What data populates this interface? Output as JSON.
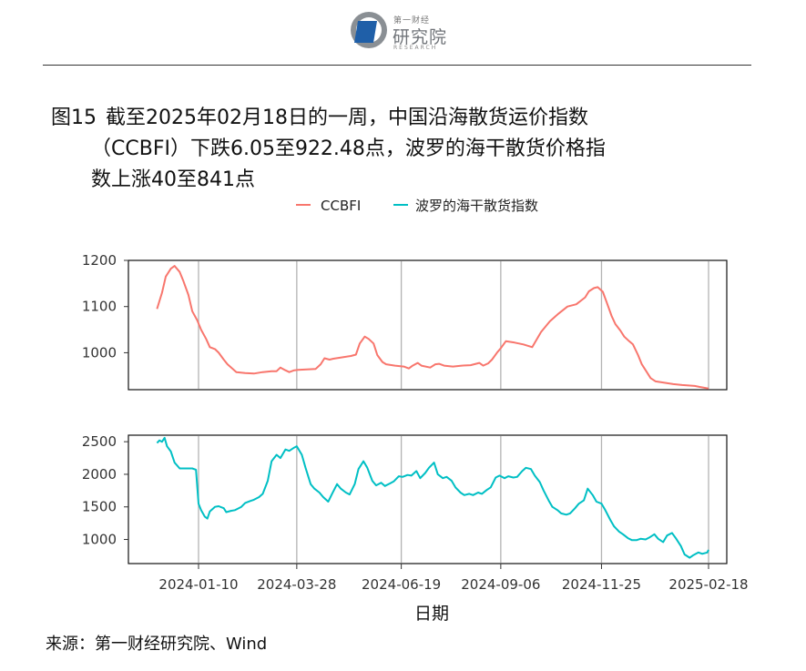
{
  "header": {
    "brand_small": "第一财经",
    "brand": "研究院",
    "brand_sub": "RESEARCH"
  },
  "title": {
    "fig": "图15",
    "line1": "截至2025年02月18日的一周，中国沿海散货运价指数",
    "line2": "（CCBFI）下跌6.05至922.48点，波罗的海干散货价格指",
    "line3": "数上涨40至841点"
  },
  "source": "来源：第一财经研究院、Wind",
  "colors": {
    "ccbfi": "#F8766D",
    "bdi": "#00BFC4"
  },
  "chart_data": {
    "type": "line",
    "xlabel": "日期",
    "x_ticks": [
      "2024-01-10",
      "2024-03-28",
      "2024-06-19",
      "2024-09-06",
      "2024-11-25",
      "2025-02-18"
    ],
    "legend": [
      "CCBFI",
      "波罗的海干散货指数"
    ],
    "legend_placement": "top",
    "panels": [
      {
        "series": "CCBFI",
        "ylim": [
          920,
          1200
        ],
        "y_ticks": [
          1000,
          1100,
          1200
        ],
        "points": [
          [
            "2023-12-08",
            1095
          ],
          [
            "2023-12-12",
            1130
          ],
          [
            "2023-12-15",
            1165
          ],
          [
            "2023-12-19",
            1182
          ],
          [
            "2023-12-22",
            1188
          ],
          [
            "2023-12-26",
            1175
          ],
          [
            "2023-12-29",
            1155
          ],
          [
            "2024-01-02",
            1125
          ],
          [
            "2024-01-05",
            1090
          ],
          [
            "2024-01-09",
            1070
          ],
          [
            "2024-01-12",
            1050
          ],
          [
            "2024-01-16",
            1030
          ],
          [
            "2024-01-19",
            1012
          ],
          [
            "2024-01-23",
            1008
          ],
          [
            "2024-01-26",
            1000
          ],
          [
            "2024-01-30",
            985
          ],
          [
            "2024-02-02",
            975
          ],
          [
            "2024-02-09",
            958
          ],
          [
            "2024-02-16",
            956
          ],
          [
            "2024-02-23",
            955
          ],
          [
            "2024-03-01",
            958
          ],
          [
            "2024-03-08",
            960
          ],
          [
            "2024-03-12",
            960
          ],
          [
            "2024-03-15",
            968
          ],
          [
            "2024-03-19",
            962
          ],
          [
            "2024-03-22",
            958
          ],
          [
            "2024-03-26",
            962
          ],
          [
            "2024-03-29",
            963
          ],
          [
            "2024-04-05",
            964
          ],
          [
            "2024-04-12",
            965
          ],
          [
            "2024-04-16",
            975
          ],
          [
            "2024-04-19",
            988
          ],
          [
            "2024-04-23",
            985
          ],
          [
            "2024-04-26",
            987
          ],
          [
            "2024-05-03",
            990
          ],
          [
            "2024-05-10",
            993
          ],
          [
            "2024-05-14",
            996
          ],
          [
            "2024-05-17",
            1020
          ],
          [
            "2024-05-21",
            1035
          ],
          [
            "2024-05-24",
            1030
          ],
          [
            "2024-05-28",
            1020
          ],
          [
            "2024-05-31",
            995
          ],
          [
            "2024-06-04",
            980
          ],
          [
            "2024-06-07",
            975
          ],
          [
            "2024-06-14",
            972
          ],
          [
            "2024-06-21",
            970
          ],
          [
            "2024-06-25",
            966
          ],
          [
            "2024-06-28",
            972
          ],
          [
            "2024-07-02",
            978
          ],
          [
            "2024-07-05",
            972
          ],
          [
            "2024-07-12",
            968
          ],
          [
            "2024-07-16",
            975
          ],
          [
            "2024-07-19",
            976
          ],
          [
            "2024-07-23",
            972
          ],
          [
            "2024-07-30",
            970
          ],
          [
            "2024-08-06",
            972
          ],
          [
            "2024-08-13",
            973
          ],
          [
            "2024-08-20",
            978
          ],
          [
            "2024-08-23",
            972
          ],
          [
            "2024-08-27",
            977
          ],
          [
            "2024-08-30",
            985
          ],
          [
            "2024-09-03",
            1000
          ],
          [
            "2024-09-06",
            1010
          ],
          [
            "2024-09-10",
            1025
          ],
          [
            "2024-09-17",
            1022
          ],
          [
            "2024-09-24",
            1018
          ],
          [
            "2024-10-01",
            1012
          ],
          [
            "2024-10-08",
            1045
          ],
          [
            "2024-10-15",
            1068
          ],
          [
            "2024-10-22",
            1085
          ],
          [
            "2024-10-29",
            1100
          ],
          [
            "2024-11-05",
            1105
          ],
          [
            "2024-11-12",
            1120
          ],
          [
            "2024-11-15",
            1133
          ],
          [
            "2024-11-19",
            1140
          ],
          [
            "2024-11-22",
            1142
          ],
          [
            "2024-11-26",
            1132
          ],
          [
            "2024-11-29",
            1110
          ],
          [
            "2024-12-03",
            1080
          ],
          [
            "2024-12-06",
            1062
          ],
          [
            "2024-12-10",
            1048
          ],
          [
            "2024-12-13",
            1035
          ],
          [
            "2024-12-17",
            1025
          ],
          [
            "2024-12-20",
            1018
          ],
          [
            "2024-12-24",
            995
          ],
          [
            "2024-12-27",
            975
          ],
          [
            "2024-12-31",
            958
          ],
          [
            "2025-01-03",
            945
          ],
          [
            "2025-01-07",
            938
          ],
          [
            "2025-01-14",
            935
          ],
          [
            "2025-01-21",
            932
          ],
          [
            "2025-01-28",
            930
          ],
          [
            "2025-02-07",
            928
          ],
          [
            "2025-02-11",
            926
          ],
          [
            "2025-02-18",
            922.48
          ]
        ]
      },
      {
        "series": "波罗的海干散货指数",
        "ylim": [
          630,
          2600
        ],
        "y_ticks": [
          1000,
          1500,
          2000,
          2500
        ],
        "points": [
          [
            "2023-12-08",
            2480
          ],
          [
            "2023-12-10",
            2520
          ],
          [
            "2023-12-12",
            2500
          ],
          [
            "2023-12-14",
            2560
          ],
          [
            "2023-12-16",
            2430
          ],
          [
            "2023-12-19",
            2350
          ],
          [
            "2023-12-22",
            2180
          ],
          [
            "2023-12-26",
            2090
          ],
          [
            "2023-12-29",
            2090
          ],
          [
            "2024-01-02",
            2090
          ],
          [
            "2024-01-05",
            2090
          ],
          [
            "2024-01-08",
            2070
          ],
          [
            "2024-01-10",
            1550
          ],
          [
            "2024-01-12",
            1450
          ],
          [
            "2024-01-15",
            1350
          ],
          [
            "2024-01-17",
            1320
          ],
          [
            "2024-01-19",
            1430
          ],
          [
            "2024-01-23",
            1500
          ],
          [
            "2024-01-26",
            1510
          ],
          [
            "2024-01-30",
            1480
          ],
          [
            "2024-02-01",
            1420
          ],
          [
            "2024-02-05",
            1440
          ],
          [
            "2024-02-08",
            1450
          ],
          [
            "2024-02-13",
            1500
          ],
          [
            "2024-02-16",
            1560
          ],
          [
            "2024-02-20",
            1590
          ],
          [
            "2024-02-23",
            1610
          ],
          [
            "2024-02-27",
            1650
          ],
          [
            "2024-03-01",
            1700
          ],
          [
            "2024-03-05",
            1900
          ],
          [
            "2024-03-08",
            2200
          ],
          [
            "2024-03-12",
            2300
          ],
          [
            "2024-03-15",
            2250
          ],
          [
            "2024-03-19",
            2380
          ],
          [
            "2024-03-22",
            2360
          ],
          [
            "2024-03-26",
            2410
          ],
          [
            "2024-03-28",
            2430
          ],
          [
            "2024-04-01",
            2300
          ],
          [
            "2024-04-04",
            2100
          ],
          [
            "2024-04-08",
            1850
          ],
          [
            "2024-04-11",
            1780
          ],
          [
            "2024-04-15",
            1720
          ],
          [
            "2024-04-18",
            1650
          ],
          [
            "2024-04-22",
            1580
          ],
          [
            "2024-04-25",
            1700
          ],
          [
            "2024-04-29",
            1850
          ],
          [
            "2024-05-02",
            1780
          ],
          [
            "2024-05-06",
            1720
          ],
          [
            "2024-05-09",
            1690
          ],
          [
            "2024-05-13",
            1850
          ],
          [
            "2024-05-16",
            2080
          ],
          [
            "2024-05-20",
            2200
          ],
          [
            "2024-05-23",
            2100
          ],
          [
            "2024-05-27",
            1900
          ],
          [
            "2024-05-30",
            1830
          ],
          [
            "2024-06-03",
            1870
          ],
          [
            "2024-06-06",
            1820
          ],
          [
            "2024-06-10",
            1860
          ],
          [
            "2024-06-13",
            1890
          ],
          [
            "2024-06-17",
            1970
          ],
          [
            "2024-06-20",
            1960
          ],
          [
            "2024-06-24",
            1990
          ],
          [
            "2024-06-27",
            1980
          ],
          [
            "2024-07-01",
            2050
          ],
          [
            "2024-07-04",
            1940
          ],
          [
            "2024-07-08",
            2020
          ],
          [
            "2024-07-11",
            2100
          ],
          [
            "2024-07-15",
            2180
          ],
          [
            "2024-07-18",
            2000
          ],
          [
            "2024-07-22",
            1940
          ],
          [
            "2024-07-25",
            1960
          ],
          [
            "2024-07-29",
            1900
          ],
          [
            "2024-08-01",
            1800
          ],
          [
            "2024-08-05",
            1720
          ],
          [
            "2024-08-08",
            1680
          ],
          [
            "2024-08-12",
            1700
          ],
          [
            "2024-08-15",
            1680
          ],
          [
            "2024-08-19",
            1720
          ],
          [
            "2024-08-22",
            1700
          ],
          [
            "2024-08-26",
            1760
          ],
          [
            "2024-08-29",
            1800
          ],
          [
            "2024-09-02",
            1950
          ],
          [
            "2024-09-05",
            1980
          ],
          [
            "2024-09-09",
            1940
          ],
          [
            "2024-09-12",
            1970
          ],
          [
            "2024-09-16",
            1950
          ],
          [
            "2024-09-19",
            1960
          ],
          [
            "2024-09-23",
            2050
          ],
          [
            "2024-09-26",
            2100
          ],
          [
            "2024-09-30",
            2080
          ],
          [
            "2024-10-03",
            1980
          ],
          [
            "2024-10-07",
            1880
          ],
          [
            "2024-10-10",
            1750
          ],
          [
            "2024-10-14",
            1600
          ],
          [
            "2024-10-17",
            1500
          ],
          [
            "2024-10-21",
            1450
          ],
          [
            "2024-10-24",
            1400
          ],
          [
            "2024-10-28",
            1380
          ],
          [
            "2024-10-31",
            1400
          ],
          [
            "2024-11-04",
            1480
          ],
          [
            "2024-11-07",
            1550
          ],
          [
            "2024-11-11",
            1600
          ],
          [
            "2024-11-14",
            1780
          ],
          [
            "2024-11-18",
            1680
          ],
          [
            "2024-11-21",
            1580
          ],
          [
            "2024-11-25",
            1550
          ],
          [
            "2024-11-28",
            1450
          ],
          [
            "2024-12-02",
            1300
          ],
          [
            "2024-12-05",
            1200
          ],
          [
            "2024-12-09",
            1120
          ],
          [
            "2024-12-12",
            1080
          ],
          [
            "2024-12-16",
            1020
          ],
          [
            "2024-12-19",
            990
          ],
          [
            "2024-12-23",
            990
          ],
          [
            "2024-12-26",
            1010
          ],
          [
            "2024-12-30",
            1000
          ],
          [
            "2025-01-02",
            1030
          ],
          [
            "2025-01-06",
            1080
          ],
          [
            "2025-01-09",
            1010
          ],
          [
            "2025-01-13",
            960
          ],
          [
            "2025-01-16",
            1060
          ],
          [
            "2025-01-20",
            1100
          ],
          [
            "2025-01-23",
            1020
          ],
          [
            "2025-01-27",
            900
          ],
          [
            "2025-01-30",
            770
          ],
          [
            "2025-02-03",
            720
          ],
          [
            "2025-02-06",
            760
          ],
          [
            "2025-02-10",
            800
          ],
          [
            "2025-02-13",
            780
          ],
          [
            "2025-02-17",
            801
          ],
          [
            "2025-02-18",
            841
          ]
        ]
      }
    ]
  }
}
